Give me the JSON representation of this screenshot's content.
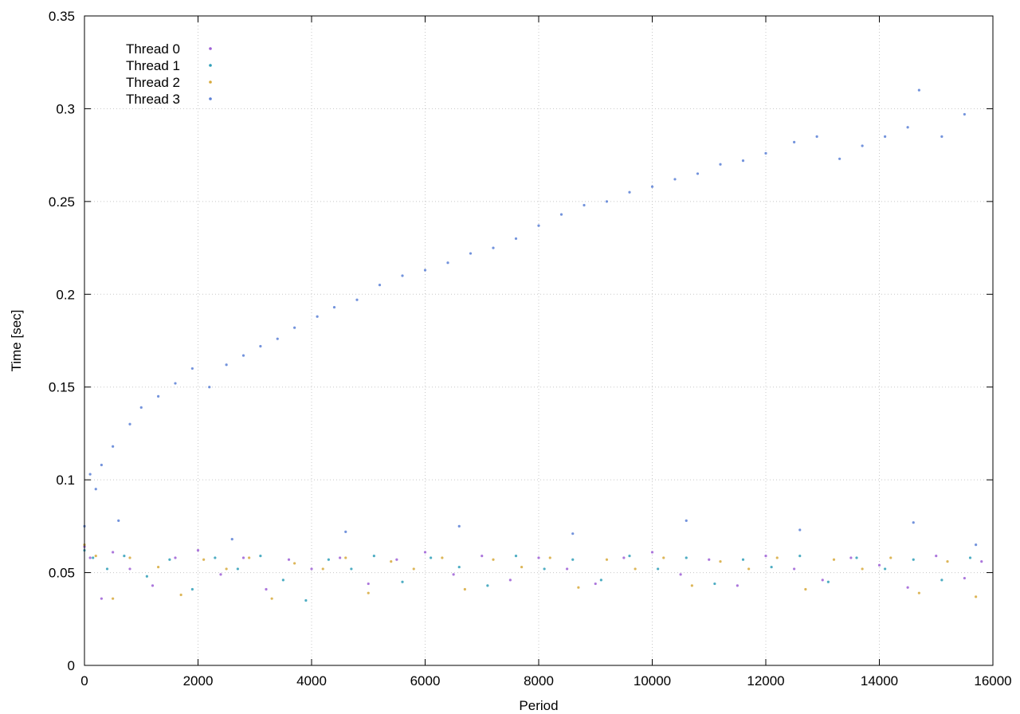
{
  "chart_data": {
    "type": "scatter",
    "title": "",
    "xlabel": "Period",
    "ylabel": "Time [sec]",
    "xlim": [
      0,
      16000
    ],
    "ylim": [
      0,
      0.35
    ],
    "xticks": [
      "0",
      "2000",
      "4000",
      "6000",
      "8000",
      "10000",
      "12000",
      "14000",
      "16000"
    ],
    "yticks": [
      "0",
      "0.05",
      "0.1",
      "0.15",
      "0.2",
      "0.25",
      "0.3",
      "0.35"
    ],
    "grid": true,
    "legend_position": "top-left",
    "series": [
      {
        "name": "Thread 0",
        "color": "#9e5fd6",
        "points": [
          [
            0,
            0.064
          ],
          [
            100,
            0.058
          ],
          [
            300,
            0.036
          ],
          [
            500,
            0.061
          ],
          [
            800,
            0.052
          ],
          [
            1200,
            0.043
          ],
          [
            1600,
            0.058
          ],
          [
            2000,
            0.062
          ],
          [
            2400,
            0.049
          ],
          [
            2800,
            0.058
          ],
          [
            3200,
            0.041
          ],
          [
            3600,
            0.057
          ],
          [
            4000,
            0.052
          ],
          [
            4500,
            0.058
          ],
          [
            5000,
            0.044
          ],
          [
            5500,
            0.057
          ],
          [
            6000,
            0.061
          ],
          [
            6500,
            0.049
          ],
          [
            7000,
            0.059
          ],
          [
            7500,
            0.046
          ],
          [
            8000,
            0.058
          ],
          [
            8500,
            0.052
          ],
          [
            9000,
            0.044
          ],
          [
            9500,
            0.058
          ],
          [
            10000,
            0.061
          ],
          [
            10500,
            0.049
          ],
          [
            11000,
            0.057
          ],
          [
            11500,
            0.043
          ],
          [
            12000,
            0.059
          ],
          [
            12500,
            0.052
          ],
          [
            13000,
            0.046
          ],
          [
            13500,
            0.058
          ],
          [
            14000,
            0.054
          ],
          [
            14500,
            0.042
          ],
          [
            15000,
            0.059
          ],
          [
            15500,
            0.047
          ],
          [
            15800,
            0.056
          ]
        ]
      },
      {
        "name": "Thread 1",
        "color": "#2f9fb9",
        "points": [
          [
            0,
            0.062
          ],
          [
            150,
            0.058
          ],
          [
            400,
            0.052
          ],
          [
            700,
            0.059
          ],
          [
            1100,
            0.048
          ],
          [
            1500,
            0.057
          ],
          [
            1900,
            0.041
          ],
          [
            2300,
            0.058
          ],
          [
            2700,
            0.052
          ],
          [
            3100,
            0.059
          ],
          [
            3500,
            0.046
          ],
          [
            3900,
            0.035
          ],
          [
            4300,
            0.057
          ],
          [
            4700,
            0.052
          ],
          [
            5100,
            0.059
          ],
          [
            5600,
            0.045
          ],
          [
            6100,
            0.058
          ],
          [
            6600,
            0.053
          ],
          [
            7100,
            0.043
          ],
          [
            7600,
            0.059
          ],
          [
            8100,
            0.052
          ],
          [
            8600,
            0.057
          ],
          [
            9100,
            0.046
          ],
          [
            9600,
            0.059
          ],
          [
            10100,
            0.052
          ],
          [
            10600,
            0.058
          ],
          [
            11100,
            0.044
          ],
          [
            11600,
            0.057
          ],
          [
            12100,
            0.053
          ],
          [
            12600,
            0.059
          ],
          [
            13100,
            0.045
          ],
          [
            13600,
            0.058
          ],
          [
            14100,
            0.052
          ],
          [
            14600,
            0.057
          ],
          [
            15100,
            0.046
          ],
          [
            15600,
            0.058
          ]
        ]
      },
      {
        "name": "Thread 2",
        "color": "#d7a93b",
        "points": [
          [
            0,
            0.065
          ],
          [
            200,
            0.059
          ],
          [
            500,
            0.036
          ],
          [
            800,
            0.058
          ],
          [
            1300,
            0.053
          ],
          [
            1700,
            0.038
          ],
          [
            2100,
            0.057
          ],
          [
            2500,
            0.052
          ],
          [
            2900,
            0.058
          ],
          [
            3300,
            0.036
          ],
          [
            3700,
            0.055
          ],
          [
            4200,
            0.052
          ],
          [
            4600,
            0.058
          ],
          [
            5000,
            0.039
          ],
          [
            5400,
            0.056
          ],
          [
            5800,
            0.052
          ],
          [
            6300,
            0.058
          ],
          [
            6700,
            0.041
          ],
          [
            7200,
            0.057
          ],
          [
            7700,
            0.053
          ],
          [
            8200,
            0.058
          ],
          [
            8700,
            0.042
          ],
          [
            9200,
            0.057
          ],
          [
            9700,
            0.052
          ],
          [
            10200,
            0.058
          ],
          [
            10700,
            0.043
          ],
          [
            11200,
            0.056
          ],
          [
            11700,
            0.052
          ],
          [
            12200,
            0.058
          ],
          [
            12700,
            0.041
          ],
          [
            13200,
            0.057
          ],
          [
            13700,
            0.052
          ],
          [
            14200,
            0.058
          ],
          [
            14700,
            0.039
          ],
          [
            15200,
            0.056
          ],
          [
            15700,
            0.037
          ]
        ]
      },
      {
        "name": "Thread 3",
        "color": "#5b80d6",
        "points": [
          [
            0,
            0.075
          ],
          [
            100,
            0.103
          ],
          [
            200,
            0.095
          ],
          [
            300,
            0.108
          ],
          [
            500,
            0.118
          ],
          [
            800,
            0.13
          ],
          [
            1000,
            0.139
          ],
          [
            1300,
            0.145
          ],
          [
            1600,
            0.152
          ],
          [
            1900,
            0.16
          ],
          [
            2200,
            0.15
          ],
          [
            2500,
            0.162
          ],
          [
            2800,
            0.167
          ],
          [
            3100,
            0.172
          ],
          [
            3400,
            0.176
          ],
          [
            3700,
            0.182
          ],
          [
            4100,
            0.188
          ],
          [
            4400,
            0.193
          ],
          [
            4800,
            0.197
          ],
          [
            5200,
            0.205
          ],
          [
            5600,
            0.21
          ],
          [
            6000,
            0.213
          ],
          [
            6400,
            0.217
          ],
          [
            6800,
            0.222
          ],
          [
            7200,
            0.225
          ],
          [
            7600,
            0.23
          ],
          [
            8000,
            0.237
          ],
          [
            8400,
            0.243
          ],
          [
            8800,
            0.248
          ],
          [
            9200,
            0.25
          ],
          [
            9600,
            0.255
          ],
          [
            10000,
            0.258
          ],
          [
            10400,
            0.262
          ],
          [
            10800,
            0.265
          ],
          [
            11200,
            0.27
          ],
          [
            11600,
            0.272
          ],
          [
            12000,
            0.276
          ],
          [
            12500,
            0.282
          ],
          [
            12900,
            0.285
          ],
          [
            13300,
            0.273
          ],
          [
            13700,
            0.28
          ],
          [
            14100,
            0.285
          ],
          [
            14500,
            0.29
          ],
          [
            14700,
            0.31
          ],
          [
            15100,
            0.285
          ],
          [
            15500,
            0.297
          ],
          [
            600,
            0.078
          ],
          [
            2600,
            0.068
          ],
          [
            4600,
            0.072
          ],
          [
            6600,
            0.075
          ],
          [
            8600,
            0.071
          ],
          [
            10600,
            0.078
          ],
          [
            12600,
            0.073
          ],
          [
            14600,
            0.077
          ],
          [
            15700,
            0.065
          ]
        ]
      }
    ]
  }
}
